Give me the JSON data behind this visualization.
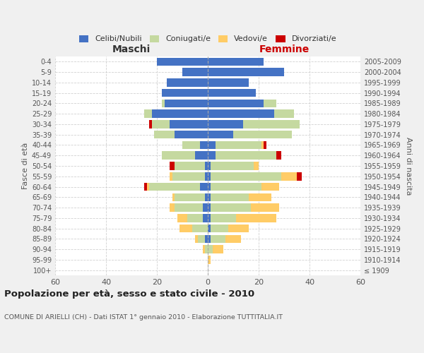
{
  "age_groups": [
    "100+",
    "95-99",
    "90-94",
    "85-89",
    "80-84",
    "75-79",
    "70-74",
    "65-69",
    "60-64",
    "55-59",
    "50-54",
    "45-49",
    "40-44",
    "35-39",
    "30-34",
    "25-29",
    "20-24",
    "15-19",
    "10-14",
    "5-9",
    "0-4"
  ],
  "birth_years": [
    "≤ 1909",
    "1910-1914",
    "1915-1919",
    "1920-1924",
    "1925-1929",
    "1930-1934",
    "1935-1939",
    "1940-1944",
    "1945-1949",
    "1950-1954",
    "1955-1959",
    "1960-1964",
    "1965-1969",
    "1970-1974",
    "1975-1979",
    "1980-1984",
    "1985-1989",
    "1990-1994",
    "1995-1999",
    "2000-2004",
    "2005-2009"
  ],
  "colors": {
    "celibe": "#4472C4",
    "coniugato": "#C5D9A0",
    "vedovo": "#FFCC66",
    "divorziato": "#CC0000"
  },
  "maschi": {
    "celibe": [
      0,
      0,
      0,
      1,
      0,
      2,
      2,
      1,
      3,
      1,
      1,
      5,
      3,
      13,
      15,
      22,
      17,
      18,
      16,
      10,
      20
    ],
    "coniugato": [
      0,
      0,
      1,
      3,
      6,
      6,
      11,
      12,
      20,
      13,
      12,
      13,
      7,
      8,
      7,
      3,
      1,
      0,
      0,
      0,
      0
    ],
    "vedovo": [
      0,
      0,
      1,
      1,
      5,
      4,
      2,
      1,
      1,
      1,
      0,
      0,
      0,
      0,
      0,
      0,
      0,
      0,
      0,
      0,
      0
    ],
    "divorziato": [
      0,
      0,
      0,
      0,
      0,
      0,
      0,
      0,
      1,
      0,
      2,
      0,
      0,
      0,
      1,
      0,
      0,
      0,
      0,
      0,
      0
    ]
  },
  "femmine": {
    "celibe": [
      0,
      0,
      0,
      1,
      1,
      1,
      1,
      1,
      1,
      1,
      1,
      3,
      3,
      10,
      14,
      26,
      22,
      19,
      16,
      30,
      22
    ],
    "coniugato": [
      0,
      0,
      2,
      6,
      7,
      10,
      16,
      15,
      20,
      28,
      17,
      24,
      18,
      23,
      22,
      8,
      5,
      0,
      0,
      0,
      0
    ],
    "vedovo": [
      0,
      1,
      4,
      6,
      8,
      16,
      11,
      9,
      7,
      6,
      2,
      0,
      1,
      0,
      0,
      0,
      0,
      0,
      0,
      0,
      0
    ],
    "divorziato": [
      0,
      0,
      0,
      0,
      0,
      0,
      0,
      0,
      0,
      2,
      0,
      2,
      1,
      0,
      0,
      0,
      0,
      0,
      0,
      0,
      0
    ]
  },
  "title": "Popolazione per età, sesso e stato civile - 2010",
  "subtitle": "COMUNE DI ARIELLI (CH) - Dati ISTAT 1° gennaio 2010 - Elaborazione TUTTITALIA.IT",
  "xlabel_left": "Maschi",
  "xlabel_right": "Femmine",
  "ylabel_left": "Fasce di età",
  "ylabel_right": "Anni di nascita",
  "xlim": 60,
  "background_color": "#f0f0f0",
  "plot_background": "#ffffff",
  "grid_color": "#cccccc"
}
